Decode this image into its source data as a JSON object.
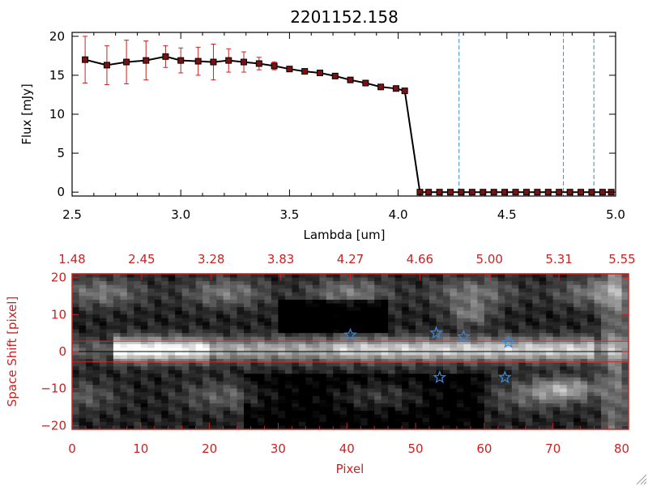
{
  "chart_data": [
    {
      "type": "line",
      "title": "2201152.158",
      "xlabel": "Lambda [um]",
      "ylabel": "Flux [mJy]",
      "xlim": [
        2.5,
        5.0
      ],
      "ylim": [
        -0.5,
        20.5
      ],
      "xticks": [
        "2.5",
        "3.0",
        "3.5",
        "4.0",
        "4.5",
        "5.0"
      ],
      "yticks": [
        "0",
        "5",
        "10",
        "15",
        "20"
      ],
      "colors": {
        "line": "#000000",
        "marker": "#7a1010",
        "error": "#cc2222",
        "vline": "#3a86d6"
      },
      "vlines": [
        4.28,
        4.76,
        4.9
      ],
      "series": [
        {
          "x": [
            2.56,
            2.66,
            2.75,
            2.84,
            2.93,
            3.0,
            3.08,
            3.15,
            3.22,
            3.29,
            3.36,
            3.43,
            3.5,
            3.57,
            3.64,
            3.71,
            3.78,
            3.85,
            3.92,
            3.99,
            4.03,
            4.1,
            4.14,
            4.19,
            4.24,
            4.29,
            4.34,
            4.39,
            4.44,
            4.49,
            4.54,
            4.59,
            4.64,
            4.69,
            4.74,
            4.79,
            4.84,
            4.89,
            4.94,
            4.98
          ],
          "y": [
            17.0,
            16.3,
            16.7,
            16.9,
            17.4,
            16.9,
            16.8,
            16.7,
            16.9,
            16.7,
            16.5,
            16.2,
            15.8,
            15.5,
            15.3,
            14.9,
            14.4,
            14.0,
            13.5,
            13.3,
            13.0,
            0,
            0,
            0,
            0,
            0,
            0,
            0,
            0,
            0,
            0,
            0,
            0,
            0,
            0,
            0,
            0,
            0,
            0,
            0
          ],
          "yerr": [
            3.0,
            2.5,
            2.8,
            2.5,
            1.4,
            1.6,
            1.8,
            2.3,
            1.5,
            1.3,
            0.8,
            0.5,
            0.3,
            0.3,
            0.2,
            0.2,
            0.2,
            0.2,
            0.2,
            0.2,
            0.2,
            0,
            0,
            0,
            0,
            0,
            0,
            0,
            0,
            0,
            0,
            0,
            0,
            0,
            0,
            0,
            0,
            0,
            0,
            0
          ]
        }
      ]
    },
    {
      "type": "heatmap",
      "xlabel": "Pixel",
      "ylabel": "Space Shift [pixel]",
      "xlim": [
        0,
        81
      ],
      "ylim": [
        -21,
        21
      ],
      "xticks": [
        "0",
        "10",
        "20",
        "30",
        "40",
        "50",
        "60",
        "70",
        "80"
      ],
      "yticks": [
        "20",
        "10",
        "0",
        "−10",
        "−20"
      ],
      "top_ticks": [
        "1.48",
        "2.45",
        "3.28",
        "3.83",
        "4.27",
        "4.66",
        "5.00",
        "5.31",
        "5.55"
      ],
      "colors": {
        "axis": "#cc2222",
        "line": "#cc2222",
        "star": "#3a86d6"
      },
      "hlines": [
        2.8,
        -2.8
      ],
      "center_line": 0,
      "stars": [
        {
          "x": 40.5,
          "y": 4.5
        },
        {
          "x": 53.0,
          "y": 5.0
        },
        {
          "x": 57.0,
          "y": 4.0
        },
        {
          "x": 63.5,
          "y": 2.5
        },
        {
          "x": 53.5,
          "y": -7.0
        },
        {
          "x": 63.0,
          "y": -7.0
        }
      ]
    }
  ]
}
